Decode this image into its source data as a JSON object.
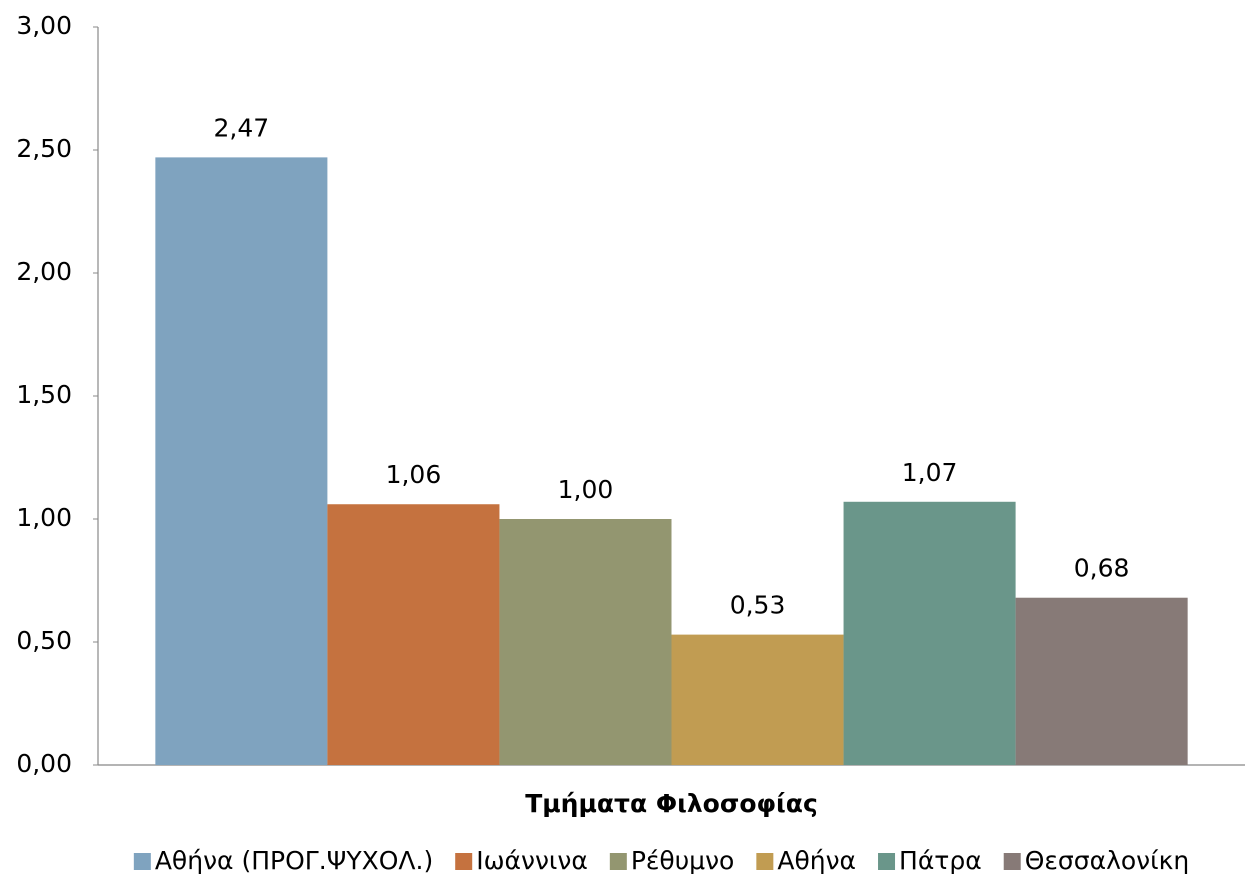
{
  "chart_data": {
    "type": "bar",
    "categories": [
      "Τμήματα Φιλοσοφίας"
    ],
    "series": [
      {
        "name": "Αθήνα (ΠΡΟΓ.ΨΥΧΟΛ.)",
        "color": "#7fa3bf",
        "values": [
          2.47
        ],
        "value_labels": [
          "2,47"
        ]
      },
      {
        "name": "Ιωάννινα",
        "color": "#c5723f",
        "values": [
          1.06
        ],
        "value_labels": [
          "1,06"
        ]
      },
      {
        "name": "Ρέθυμνο",
        "color": "#939670",
        "values": [
          1.0
        ],
        "value_labels": [
          "1,00"
        ]
      },
      {
        "name": "Αθήνα",
        "color": "#c19c52",
        "values": [
          0.53
        ],
        "value_labels": [
          "0,53"
        ]
      },
      {
        "name": "Πάτρα",
        "color": "#6a968a",
        "values": [
          1.07
        ],
        "value_labels": [
          "1,07"
        ]
      },
      {
        "name": "Θεσσαλονίκη",
        "color": "#877a77",
        "values": [
          0.68
        ],
        "value_labels": [
          "0,68"
        ]
      }
    ],
    "ylim": [
      0,
      3
    ],
    "yticks": [
      {
        "value": 0,
        "label": "0,00"
      },
      {
        "value": 0.5,
        "label": "0,50"
      },
      {
        "value": 1,
        "label": "1,00"
      },
      {
        "value": 1.5,
        "label": "1,50"
      },
      {
        "value": 2,
        "label": "2,00"
      },
      {
        "value": 2.5,
        "label": "2,50"
      },
      {
        "value": 3,
        "label": "3,00"
      }
    ],
    "grid": false,
    "legend": "bottom"
  }
}
